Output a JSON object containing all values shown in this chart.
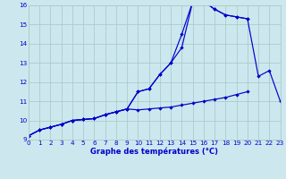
{
  "title": "Graphe des températures (°C)",
  "background_color": "#cce8ee",
  "grid_color": "#aacccc",
  "line_color": "#0000cc",
  "ylim": [
    9,
    16
  ],
  "xlim": [
    0,
    23
  ],
  "yticks": [
    9,
    10,
    11,
    12,
    13,
    14,
    15,
    16
  ],
  "xticks": [
    0,
    1,
    2,
    3,
    4,
    5,
    6,
    7,
    8,
    9,
    10,
    11,
    12,
    13,
    14,
    15,
    16,
    17,
    18,
    19,
    20,
    21,
    22,
    23
  ],
  "line_bottom": {
    "x": [
      0,
      1,
      2,
      3,
      4,
      5,
      6,
      7,
      8,
      9,
      10,
      11,
      12,
      13,
      14,
      15,
      16,
      17,
      18,
      19,
      20
    ],
    "y": [
      9.2,
      9.5,
      9.65,
      9.8,
      10.0,
      10.05,
      10.1,
      10.3,
      10.45,
      10.6,
      10.55,
      10.6,
      10.65,
      10.7,
      10.8,
      10.9,
      11.0,
      11.1,
      11.2,
      11.35,
      11.5
    ]
  },
  "line_mid": {
    "x": [
      0,
      1,
      2,
      3,
      4,
      5,
      6,
      7,
      8,
      9,
      10,
      11,
      12,
      13,
      14,
      15,
      16,
      17,
      18,
      19,
      20,
      21,
      22,
      23
    ],
    "y": [
      9.2,
      9.5,
      9.65,
      9.8,
      10.0,
      10.05,
      10.1,
      10.3,
      10.45,
      10.6,
      11.5,
      11.65,
      12.4,
      13.0,
      13.8,
      16.2,
      16.2,
      15.8,
      15.5,
      15.4,
      15.3,
      12.3,
      12.6,
      11.0
    ]
  },
  "line_top": {
    "x": [
      0,
      1,
      2,
      3,
      4,
      5,
      6,
      7,
      8,
      9,
      10,
      11,
      12,
      13,
      14,
      15,
      16,
      17,
      18,
      19,
      20
    ],
    "y": [
      9.2,
      9.5,
      9.65,
      9.8,
      10.0,
      10.05,
      10.1,
      10.3,
      10.45,
      10.6,
      11.5,
      11.65,
      12.4,
      13.0,
      14.5,
      16.2,
      16.2,
      15.8,
      15.5,
      15.4,
      15.3
    ]
  }
}
